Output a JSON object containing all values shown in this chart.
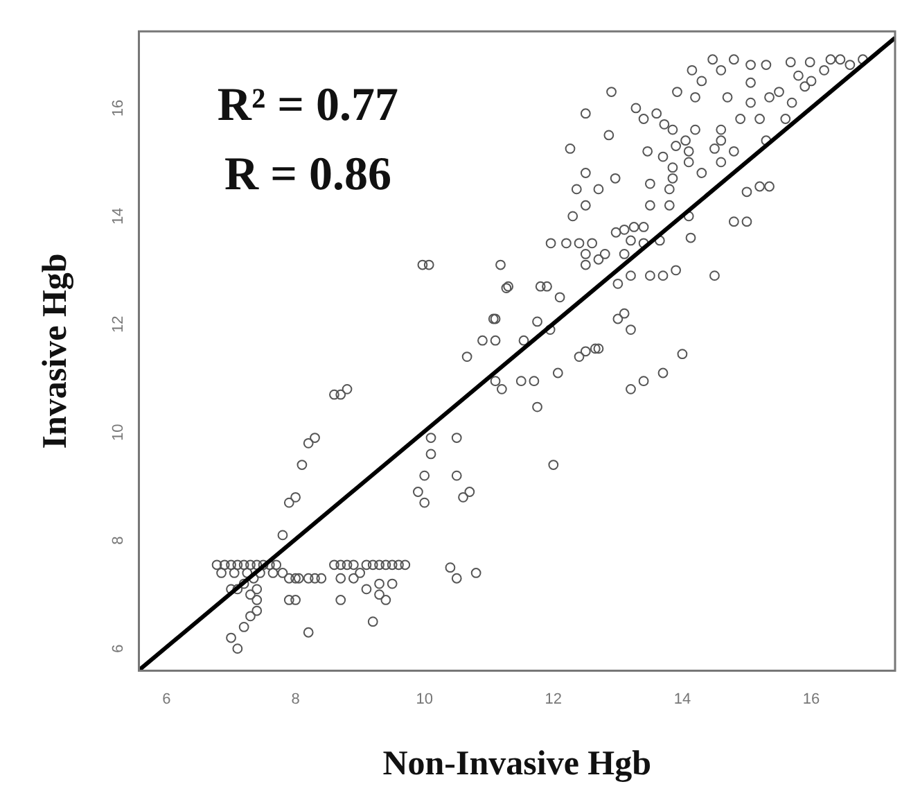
{
  "chart_data": {
    "type": "scatter",
    "xlabel": "Non-Invasive Hgb",
    "ylabel": "Invasive Hgb",
    "annotations": [
      "R² = 0.77",
      "R = 0.86"
    ],
    "xlim": [
      5.57,
      17.3
    ],
    "ylim": [
      5.59,
      17.42
    ],
    "xticks": [
      6,
      8,
      10,
      12,
      14,
      16
    ],
    "yticks": [
      6,
      8,
      10,
      12,
      14,
      16
    ],
    "grid": false,
    "legend": false,
    "series": [
      {
        "color": "#555555",
        "marker": "circle",
        "x": [
          6.78,
          6.9,
          7.0,
          7.1,
          7.2,
          7.3,
          7.4,
          7.5,
          7.6,
          7.7,
          6.85,
          7.05,
          7.25,
          7.45,
          7.65,
          7.8,
          7.0,
          7.1,
          7.2,
          7.3,
          7.4,
          7.35,
          7.9,
          8.0,
          8.05,
          8.2,
          8.3,
          8.4,
          8.6,
          8.7,
          8.8,
          8.9,
          9.0,
          9.1,
          9.2,
          9.3,
          9.4,
          9.5,
          9.6,
          9.7,
          8.7,
          8.9,
          9.1,
          9.3,
          9.5,
          7.0,
          7.1,
          7.2,
          7.3,
          7.4,
          7.4,
          8.2,
          9.2,
          8.7,
          7.9,
          8.0,
          9.4,
          9.3,
          7.8,
          7.9,
          8.0,
          8.1,
          8.2,
          8.3,
          8.6,
          8.7,
          8.8,
          9.9,
          10.0,
          10.1,
          10.1,
          10.0,
          10.5,
          10.5,
          10.7,
          10.4,
          10.5,
          10.8,
          10.6,
          9.97,
          10.07,
          11.18,
          11.27,
          11.07,
          10.9,
          10.66,
          14.47,
          14.8,
          15.06,
          15.3,
          15.68,
          15.98,
          16.3,
          16.45,
          14.15,
          14.6,
          15.06,
          14.3,
          13.92,
          14.2,
          14.7,
          15.06,
          15.35,
          15.7,
          12.9,
          12.5,
          12.86,
          13.28,
          13.4,
          13.6,
          13.72,
          13.85,
          14.2,
          14.6,
          14.9,
          15.2,
          15.3,
          15.6,
          14.05,
          14.6,
          14.8,
          12.26,
          13.46,
          13.7,
          13.9,
          14.1,
          14.1,
          13.85,
          13.85,
          14.3,
          14.6,
          14.5,
          12.5,
          12.96,
          12.36,
          12.7,
          13.8,
          13.5,
          12.5,
          12.3,
          13.5,
          13.8,
          14.1,
          14.8,
          15.0,
          15.0,
          15.2,
          15.35,
          11.96,
          12.2,
          12.4,
          12.6,
          12.97,
          13.1,
          13.25,
          13.4,
          13.2,
          13.4,
          13.65,
          12.5,
          12.8,
          13.1,
          12.5,
          12.7,
          14.13,
          11.3,
          11.8,
          11.9,
          12.1,
          13.0,
          13.2,
          13.5,
          13.7,
          13.9,
          14.5,
          11.1,
          11.1,
          11.75,
          11.95,
          11.54,
          13.0,
          13.1,
          13.2,
          12.5,
          12.65,
          12.7,
          12.4,
          12.07,
          14.0,
          13.7,
          13.4,
          11.5,
          11.7,
          11.1,
          11.75,
          12.0,
          13.2,
          11.2,
          15.8,
          16.0,
          16.2,
          16.6,
          16.8,
          15.5,
          15.9
        ],
        "values": [
          7.55,
          7.55,
          7.55,
          7.55,
          7.55,
          7.55,
          7.55,
          7.55,
          7.55,
          7.55,
          7.4,
          7.4,
          7.4,
          7.4,
          7.4,
          7.4,
          7.1,
          7.1,
          7.2,
          7.0,
          7.1,
          7.3,
          7.3,
          7.3,
          7.3,
          7.3,
          7.3,
          7.3,
          7.55,
          7.55,
          7.55,
          7.55,
          7.4,
          7.55,
          7.55,
          7.55,
          7.55,
          7.55,
          7.55,
          7.55,
          7.3,
          7.3,
          7.1,
          7.2,
          7.2,
          6.2,
          6.0,
          6.4,
          6.6,
          6.9,
          6.7,
          6.3,
          6.5,
          6.9,
          6.9,
          6.9,
          6.9,
          7.0,
          8.1,
          8.7,
          8.8,
          9.4,
          9.8,
          9.9,
          10.7,
          10.7,
          10.8,
          8.9,
          9.2,
          9.6,
          9.9,
          8.7,
          9.9,
          9.2,
          8.9,
          7.5,
          7.3,
          7.4,
          8.8,
          13.1,
          13.1,
          13.1,
          12.67,
          12.1,
          11.7,
          11.4,
          16.9,
          16.9,
          16.8,
          16.8,
          16.85,
          16.85,
          16.9,
          16.9,
          16.7,
          16.7,
          16.47,
          16.5,
          16.3,
          16.2,
          16.2,
          16.1,
          16.2,
          16.1,
          16.3,
          15.9,
          15.5,
          16.0,
          15.8,
          15.9,
          15.7,
          15.6,
          15.6,
          15.6,
          15.8,
          15.8,
          15.4,
          15.8,
          15.4,
          15.4,
          15.2,
          15.25,
          15.2,
          15.1,
          15.3,
          15.2,
          15.0,
          14.9,
          14.7,
          14.8,
          15.0,
          15.25,
          14.8,
          14.7,
          14.5,
          14.5,
          14.5,
          14.6,
          14.2,
          14.0,
          14.2,
          14.2,
          14.0,
          13.9,
          13.9,
          14.45,
          14.55,
          14.55,
          13.5,
          13.5,
          13.5,
          13.5,
          13.7,
          13.75,
          13.8,
          13.8,
          13.55,
          13.5,
          13.55,
          13.3,
          13.3,
          13.3,
          13.1,
          13.2,
          13.6,
          12.7,
          12.7,
          12.7,
          12.5,
          12.75,
          12.9,
          12.9,
          12.9,
          13.0,
          12.9,
          12.1,
          11.7,
          12.05,
          11.9,
          11.7,
          12.1,
          12.2,
          11.9,
          11.5,
          11.55,
          11.55,
          11.4,
          11.1,
          11.45,
          11.1,
          10.95,
          10.95,
          10.95,
          10.95,
          10.47,
          9.4,
          10.8,
          10.8,
          16.6,
          16.5,
          16.7,
          16.8,
          16.9,
          16.3,
          16.4
        ]
      },
      {
        "type": "line",
        "color": "#000000",
        "marker": "none",
        "x": [
          5.57,
          17.3
        ],
        "values": [
          5.6,
          17.3
        ]
      }
    ]
  }
}
